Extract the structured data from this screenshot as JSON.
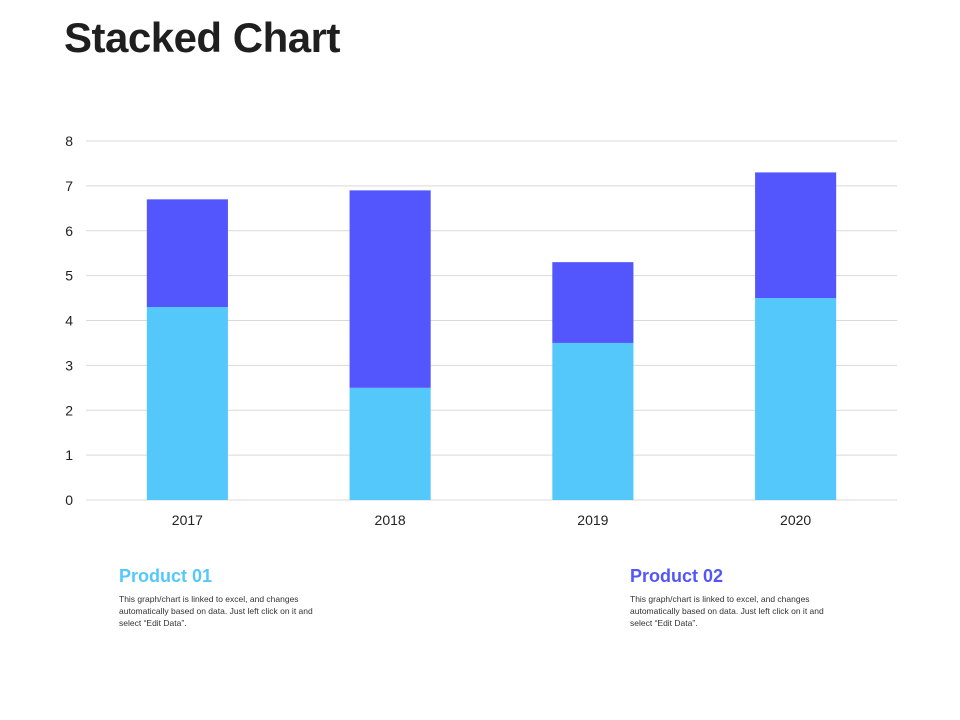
{
  "page": {
    "title": "Stacked Chart"
  },
  "legend": [
    {
      "title": "Product 01",
      "description": "This graph/chart is linked to excel, and changes automatically based on data. Just left click on it and select “Edit Data”.",
      "color": "#55c8fb"
    },
    {
      "title": "Product 02",
      "description": "This graph/chart is linked to excel, and changes automatically based on data. Just left click on it and select “Edit Data”.",
      "color": "#5256fc"
    }
  ],
  "chart_data": {
    "type": "bar",
    "stacked": true,
    "title": "",
    "xlabel": "",
    "ylabel": "",
    "categories": [
      "2017",
      "2018",
      "2019",
      "2020"
    ],
    "series": [
      {
        "name": "Product 01",
        "values": [
          4.3,
          2.5,
          3.5,
          4.5
        ],
        "color": "#55c8fb"
      },
      {
        "name": "Product 02",
        "values": [
          2.4,
          4.4,
          1.8,
          2.8
        ],
        "color": "#5256fc"
      }
    ],
    "ylim": [
      0,
      8
    ],
    "yticks": [
      "0",
      "1",
      "2",
      "3",
      "4",
      "5",
      "6",
      "7",
      "8"
    ],
    "grid": true,
    "legend_position": "bottom"
  }
}
